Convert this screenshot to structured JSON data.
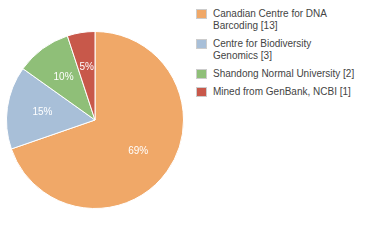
{
  "chart_data": {
    "type": "pie",
    "categories": [
      "Canadian Centre for DNA\nBarcoding [13]",
      "Centre for Biodiversity\nGenomics [3]",
      "Shandong Normal University [2]",
      "Mined from GenBank, NCBI [1]"
    ],
    "values": [
      69,
      15,
      10,
      5
    ],
    "value_labels": [
      "69%",
      "15%",
      "10%",
      "5%"
    ],
    "colors": [
      "#F0A868",
      "#A8BFD8",
      "#8FBF78",
      "#C8584A"
    ],
    "data_labels": true,
    "legend": "right"
  }
}
